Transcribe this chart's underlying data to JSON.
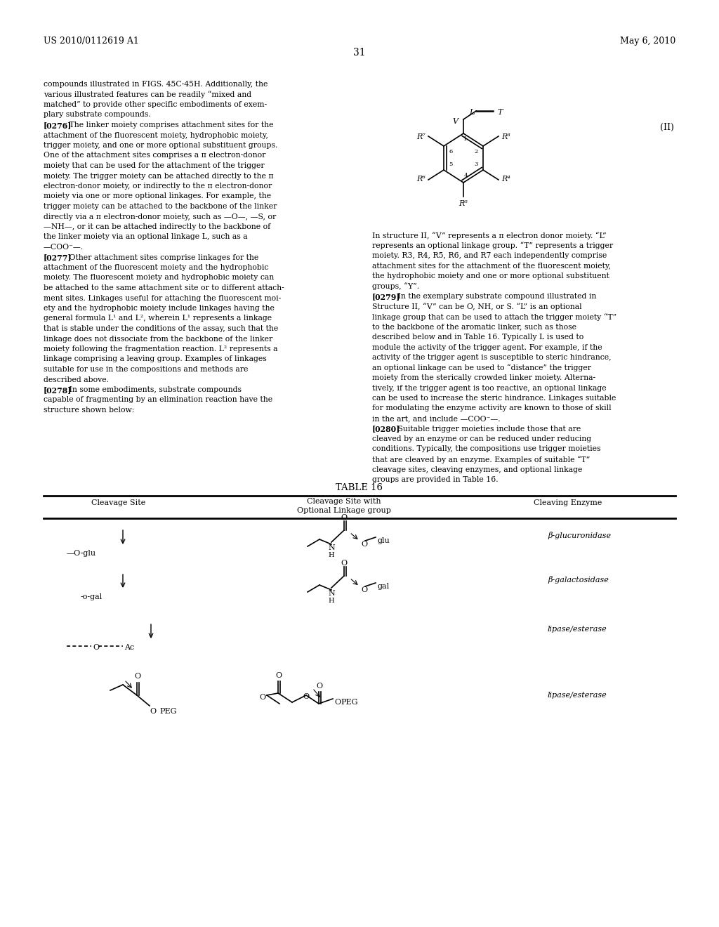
{
  "bg_color": "#ffffff",
  "header_left": "US 2010/0112619 A1",
  "header_right": "May 6, 2010",
  "page_number": "31",
  "left_col_lines": [
    "compounds illustrated in FIGS. 45C-45H. Additionally, the",
    "various illustrated features can be readily “mixed and",
    "matched” to provide other specific embodiments of exem-",
    "plary substrate compounds.",
    "[0276]   The linker moiety comprises attachment sites for the",
    "attachment of the fluorescent moiety, hydrophobic moiety,",
    "trigger moiety, and one or more optional substituent groups.",
    "One of the attachment sites comprises a π electron-donor",
    "moiety that can be used for the attachment of the trigger",
    "moiety. The trigger moiety can be attached directly to the π",
    "electron-donor moiety, or indirectly to the π electron-donor",
    "moiety via one or more optional linkages. For example, the",
    "trigger moiety can be attached to the backbone of the linker",
    "directly via a π electron-donor moiety, such as —O—, —S, or",
    "—NH—, or it can be attached indirectly to the backbone of",
    "the linker moiety via an optional linkage L, such as a",
    "—COO⁻—.",
    "[0277]   Other attachment sites comprise linkages for the",
    "attachment of the fluorescent moiety and the hydrophobic",
    "moiety. The fluorescent moiety and hydrophobic moiety can",
    "be attached to the same attachment site or to different attach-",
    "ment sites. Linkages useful for attaching the fluorescent moi-",
    "ety and the hydrophobic moiety include linkages having the",
    "general formula L¹ and L², wherein L¹ represents a linkage",
    "that is stable under the conditions of the assay, such that the",
    "linkage does not dissociate from the backbone of the linker",
    "moiety following the fragmentation reaction. L² represents a",
    "linkage comprising a leaving group. Examples of linkages",
    "suitable for use in the compositions and methods are",
    "described above.",
    "[0278]   In some embodiments, substrate compounds",
    "capable of fragmenting by an elimination reaction have the",
    "structure shown below:"
  ],
  "right_col_lines": [
    "In structure II, “V” represents a π electron donor moiety. “L”",
    "represents an optional linkage group. “T” represents a trigger",
    "moiety. R3, R4, R5, R6, and R7 each independently comprise",
    "attachment sites for the attachment of the fluorescent moiety,",
    "the hydrophobic moiety and one or more optional substituent",
    "groups, “Y”.",
    "[0279]   In the exemplary substrate compound illustrated in",
    "Structure II, “V” can be O, NH, or S. “L” is an optional",
    "linkage group that can be used to attach the trigger moiety “T”",
    "to the backbone of the aromatic linker, such as those",
    "described below and in Table 16. Typically L is used to",
    "module the activity of the trigger agent. For example, if the",
    "activity of the trigger agent is susceptible to steric hindrance,",
    "an optional linkage can be used to “distance” the trigger",
    "moiety from the sterically crowded linker moiety. Alterna-",
    "tively, if the trigger agent is too reactive, an optional linkage",
    "can be used to increase the steric hindrance. Linkages suitable",
    "for modulating the enzyme activity are known to those of skill",
    "in the art, and include —COO⁻—.",
    "[0280]   Suitable trigger moieties include those that are",
    "cleaved by an enzyme or can be reduced under reducing",
    "conditions. Typically, the compositions use trigger moieties",
    "that are cleaved by an enzyme. Examples of suitable “T”",
    "cleavage sites, cleaving enzymes, and optional linkage",
    "groups are provided in Table 16."
  ],
  "table_title": "TABLE 16",
  "col1_header": "Cleavage Site",
  "col2_header1": "Cleavage Site with",
  "col2_header2": "Optional Linkage group",
  "col3_header": "Cleaving Enzyme",
  "row1_site": "—O-glu",
  "row1_enzyme": "β-glucuronidase",
  "row2_site": "-o-gal",
  "row2_enzyme": "β-galactosidase",
  "row3_site": "—O—Ac",
  "row3_enzyme": "lipase/esterase",
  "row4_enzyme": "lipase/esterase"
}
